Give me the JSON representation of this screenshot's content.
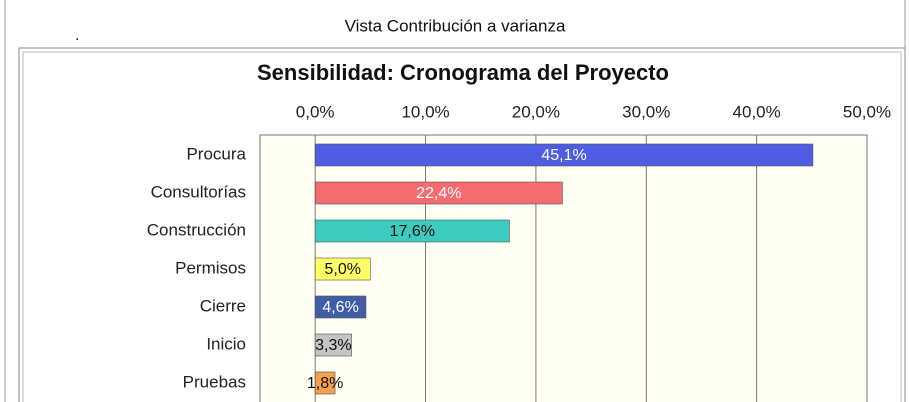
{
  "window_title": "Vista Contribución a varianza",
  "window_mark": ".",
  "chart_data": {
    "type": "barh",
    "title": "Sensibilidad: Cronograma del Proyecto",
    "categories": [
      "Procura",
      "Consultorías",
      "Construcción",
      "Permisos",
      "Cierre",
      "Inicio",
      "Pruebas"
    ],
    "series": [
      {
        "values": [
          45.1,
          22.4,
          17.6,
          5.0,
          4.6,
          3.3,
          1.8
        ],
        "value_labels": [
          "45,1%",
          "22,4%",
          "17,6%",
          "5,0%",
          "4,6%",
          "3,3%",
          "1,8%"
        ],
        "colors": [
          "#4e5de2",
          "#f46b70",
          "#3ecbbf",
          "#ffff66",
          "#3f5ea6",
          "#c4c4c4",
          "#f2a050"
        ]
      }
    ],
    "xlim": [
      -5,
      50
    ],
    "xticks": [
      {
        "value": 0,
        "label": "0,0%"
      },
      {
        "value": 10,
        "label": "10,0%"
      },
      {
        "value": 20,
        "label": "20,0%"
      },
      {
        "value": 30,
        "label": "30,0%"
      },
      {
        "value": 40,
        "label": "40,0%"
      },
      {
        "value": 50,
        "label": "50,0%"
      }
    ],
    "grid": true
  }
}
